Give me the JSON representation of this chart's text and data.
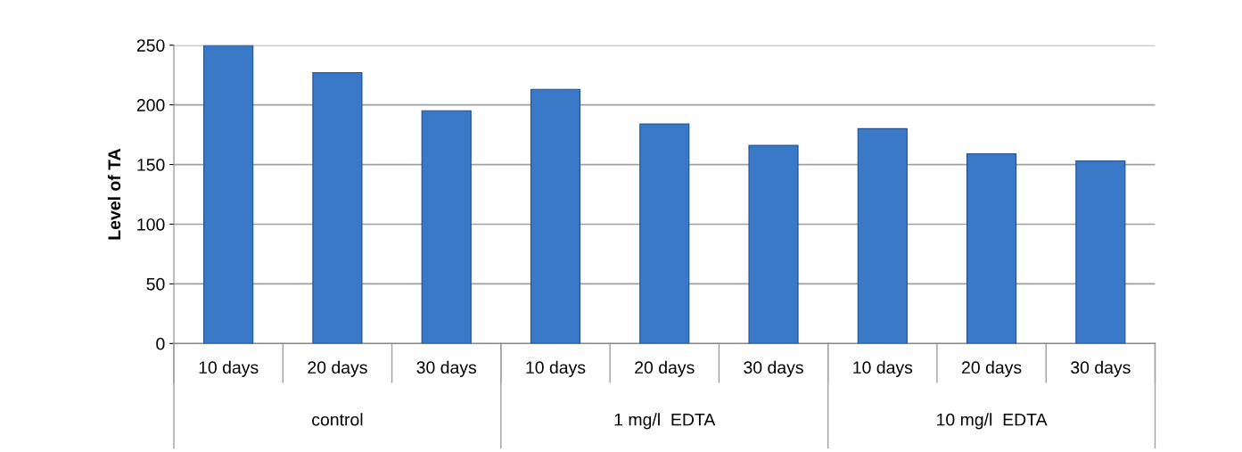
{
  "chart_data": {
    "type": "bar",
    "ylabel": "Level of TA",
    "categories": [
      "10 days",
      "20 days",
      "30 days",
      "10 days",
      "20 days",
      "30 days",
      "10 days",
      "20 days",
      "30 days"
    ],
    "values": [
      250,
      227,
      195,
      213,
      184,
      166,
      180,
      159,
      153
    ],
    "color": "#3a78c8",
    "ylim": [
      0,
      250
    ],
    "yticks": [
      0,
      50,
      100,
      150,
      200,
      250
    ],
    "grid": "y",
    "annotations": [
      "control",
      "1 mg/l  EDTA",
      "10 mg/l  EDTA"
    ]
  }
}
